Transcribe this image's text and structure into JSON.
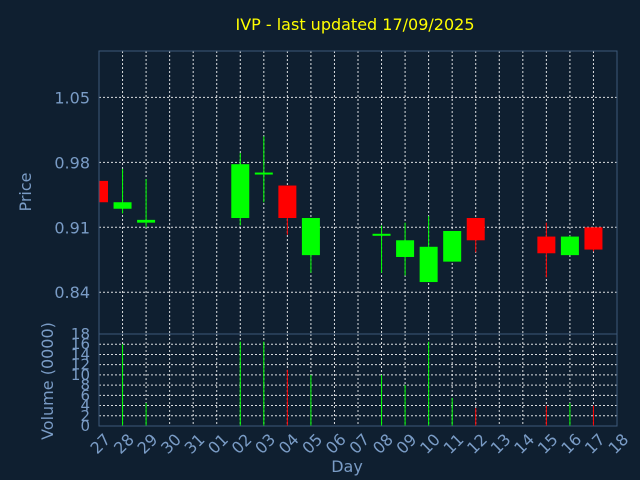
{
  "chart_data": {
    "type": "candlestick",
    "title": "IVP - last updated 17/09/2025",
    "xlabel": "Day",
    "ylabel_price": "Price",
    "ylabel_volume": "Volume (0000)",
    "price_ylim": [
      0.795,
      1.1
    ],
    "price_ticks": [
      "1.05",
      "0.98",
      "0.91",
      "0.84"
    ],
    "price_tick_values": [
      1.05,
      0.98,
      0.91,
      0.84
    ],
    "volume_ylim": [
      0,
      18
    ],
    "volume_ticks": [
      "0",
      "2",
      "4",
      "6",
      "8",
      "10",
      "12",
      "14",
      "16",
      "18"
    ],
    "volume_tick_values": [
      0,
      2,
      4,
      6,
      8,
      10,
      12,
      14,
      16,
      18
    ],
    "x_ticks": [
      "27",
      "28",
      "29",
      "30",
      "31",
      "01",
      "02",
      "03",
      "04",
      "05",
      "06",
      "07",
      "08",
      "09",
      "10",
      "11",
      "12",
      "13",
      "14",
      "15",
      "16",
      "17",
      "18"
    ],
    "colors": {
      "up": "#00ff00",
      "down": "#ff0000",
      "title": "#ffff00",
      "text": "#7a9cc6",
      "background": "#0f1f30"
    },
    "candles": [
      {
        "day": "27",
        "open": 0.96,
        "high": 0.96,
        "low": 0.935,
        "close": 0.937,
        "volume": 0
      },
      {
        "day": "28",
        "open": 0.93,
        "high": 0.973,
        "low": 0.925,
        "close": 0.937,
        "volume": 16
      },
      {
        "day": "29",
        "open": 0.915,
        "high": 0.962,
        "low": 0.91,
        "close": 0.918,
        "volume": 4.5
      },
      {
        "day": "02",
        "open": 0.92,
        "high": 0.99,
        "low": 0.912,
        "close": 0.978,
        "volume": 16.5
      },
      {
        "day": "03",
        "open": 0.967,
        "high": 1.008,
        "low": 0.937,
        "close": 0.969,
        "volume": 16.5
      },
      {
        "day": "04",
        "open": 0.955,
        "high": 0.955,
        "low": 0.902,
        "close": 0.92,
        "volume": 11
      },
      {
        "day": "05",
        "open": 0.88,
        "high": 0.92,
        "low": 0.861,
        "close": 0.92,
        "volume": 10
      },
      {
        "day": "08",
        "open": 0.903,
        "high": 0.912,
        "low": 0.861,
        "close": 0.903,
        "volume": 10
      },
      {
        "day": "09",
        "open": 0.878,
        "high": 0.915,
        "low": 0.858,
        "close": 0.896,
        "volume": 8
      },
      {
        "day": "10",
        "open": 0.851,
        "high": 0.922,
        "low": 0.851,
        "close": 0.889,
        "volume": 16.5
      },
      {
        "day": "11",
        "open": 0.873,
        "high": 0.906,
        "low": 0.873,
        "close": 0.906,
        "volume": 5.5
      },
      {
        "day": "12",
        "open": 0.92,
        "high": 0.92,
        "low": 0.883,
        "close": 0.896,
        "volume": 3.5
      },
      {
        "day": "15",
        "open": 0.9,
        "high": 0.915,
        "low": 0.856,
        "close": 0.882,
        "volume": 4
      },
      {
        "day": "16",
        "open": 0.88,
        "high": 0.901,
        "low": 0.88,
        "close": 0.9,
        "volume": 4.5
      },
      {
        "day": "17",
        "open": 0.91,
        "high": 0.91,
        "low": 0.884,
        "close": 0.886,
        "volume": 4
      }
    ]
  }
}
